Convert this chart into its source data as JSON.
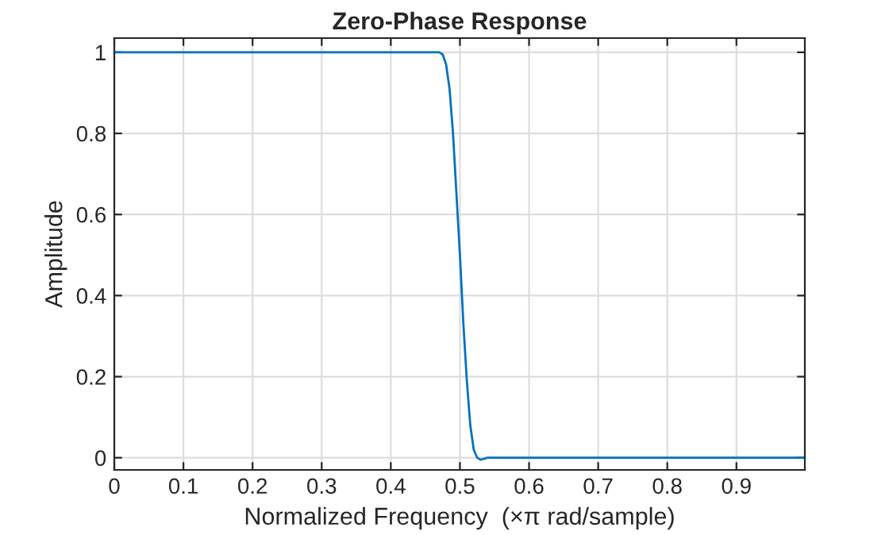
{
  "chart_data": {
    "type": "line",
    "title": "Zero-Phase Response",
    "xlabel": "Normalized Frequency  (×π rad/sample)",
    "ylabel": "Amplitude",
    "series": [
      {
        "color": "#0072bd",
        "x": [
          0,
          0.05,
          0.1,
          0.15,
          0.2,
          0.25,
          0.3,
          0.35,
          0.4,
          0.44,
          0.46,
          0.47,
          0.475,
          0.48,
          0.485,
          0.49,
          0.495,
          0.5,
          0.505,
          0.51,
          0.515,
          0.52,
          0.525,
          0.53,
          0.54,
          0.56,
          0.6,
          0.65,
          0.7,
          0.8,
          0.9,
          0.999
        ],
        "values": [
          1,
          1,
          1,
          1,
          1,
          1,
          1,
          1,
          1,
          1,
          1,
          1,
          0.995,
          0.97,
          0.91,
          0.8,
          0.65,
          0.5,
          0.33,
          0.19,
          0.08,
          0.02,
          0.0,
          -0.005,
          0,
          0,
          0,
          0,
          0,
          0,
          0,
          0
        ]
      }
    ],
    "xlim": [
      0,
      0.999
    ],
    "ylim": [
      -0.03,
      1.035
    ],
    "xticks": [
      0,
      0.1,
      0.2,
      0.3,
      0.4,
      0.5,
      0.6,
      0.7,
      0.8,
      0.9
    ],
    "yticks": [
      0,
      0.2,
      0.4,
      0.6,
      0.8,
      1
    ],
    "grid": true,
    "legend": false
  }
}
